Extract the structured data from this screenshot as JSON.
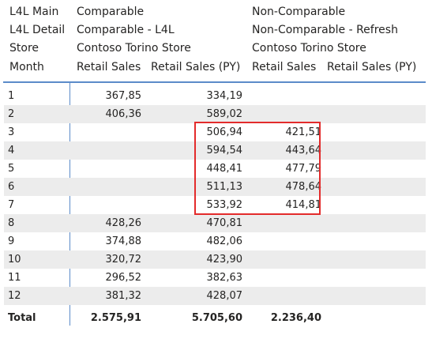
{
  "header": {
    "row_labels": [
      "L4L Main",
      "L4L Detail",
      "Store",
      "Month"
    ],
    "group1": {
      "l4l_main": "Comparable",
      "l4l_detail": "Comparable - L4L",
      "store": "Contoso Torino Store",
      "col1": "Retail Sales",
      "col2": "Retail Sales (PY)"
    },
    "group2": {
      "l4l_main": "Non-Comparable",
      "l4l_detail": "Non-Comparable - Refresh",
      "store": "Contoso Torino Store",
      "col1": "Retail Sales",
      "col2": "Retail Sales (PY)"
    }
  },
  "rows": [
    {
      "month": "1",
      "c1": "367,85",
      "c2": "334,19",
      "c3": "",
      "c4": ""
    },
    {
      "month": "2",
      "c1": "406,36",
      "c2": "589,02",
      "c3": "",
      "c4": ""
    },
    {
      "month": "3",
      "c1": "",
      "c2": "506,94",
      "c3": "421,51",
      "c4": ""
    },
    {
      "month": "4",
      "c1": "",
      "c2": "594,54",
      "c3": "443,64",
      "c4": ""
    },
    {
      "month": "5",
      "c1": "",
      "c2": "448,41",
      "c3": "477,79",
      "c4": ""
    },
    {
      "month": "6",
      "c1": "",
      "c2": "511,13",
      "c3": "478,64",
      "c4": ""
    },
    {
      "month": "7",
      "c1": "",
      "c2": "533,92",
      "c3": "414,81",
      "c4": ""
    },
    {
      "month": "8",
      "c1": "428,26",
      "c2": "470,81",
      "c3": "",
      "c4": ""
    },
    {
      "month": "9",
      "c1": "374,88",
      "c2": "482,06",
      "c3": "",
      "c4": ""
    },
    {
      "month": "10",
      "c1": "320,72",
      "c2": "423,90",
      "c3": "",
      "c4": ""
    },
    {
      "month": "11",
      "c1": "296,52",
      "c2": "382,63",
      "c3": "",
      "c4": ""
    },
    {
      "month": "12",
      "c1": "381,32",
      "c2": "428,07",
      "c3": "",
      "c4": ""
    }
  ],
  "total": {
    "label": "Total",
    "c1": "2.575,91",
    "c2": "5.705,60",
    "c3": "2.236,40",
    "c4": ""
  },
  "colors": {
    "accent_line": "#5b8bc9",
    "highlight": "#e32b2b",
    "alt_row": "#ececec"
  }
}
